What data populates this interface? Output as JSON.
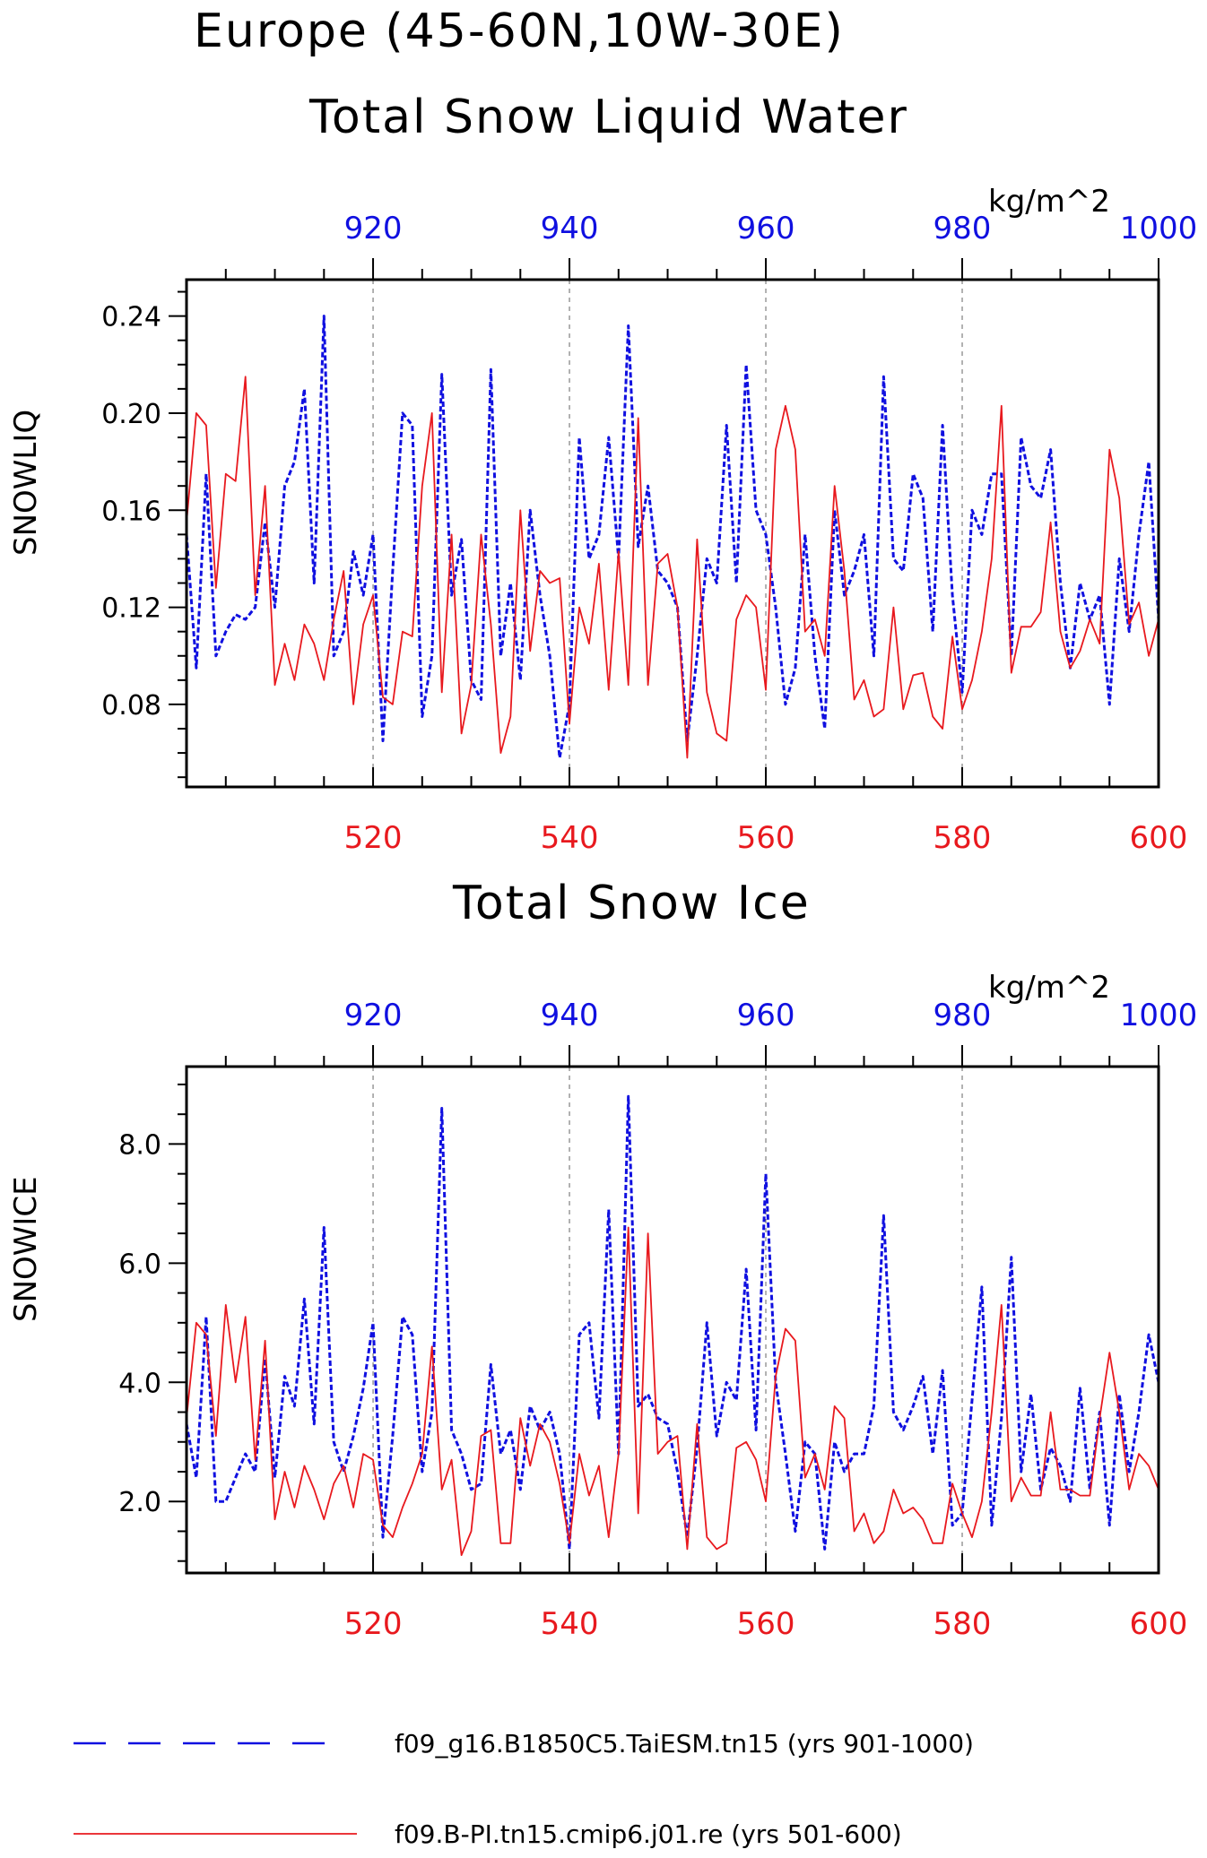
{
  "figure": {
    "title_line1": "Europe (45-60N,10W-30E)",
    "title_line2": "Total Snow Liquid Water"
  },
  "legend": {
    "entries": [
      {
        "label": "f09_g16.B1850C5.TaiESM.tn15 (yrs 901-1000)",
        "color": "#1010e0",
        "style": "dashed"
      },
      {
        "label": "f09.B-PI.tn15.cmip6.j01.re (yrs 501-600)",
        "color": "#e8191e",
        "style": "solid"
      }
    ]
  },
  "chart_data": [
    {
      "type": "line",
      "title": "Total Snow Liquid Water",
      "ylabel": "SNOWLIQ",
      "units": "kg/m^2",
      "ylim": [
        0.046,
        0.255
      ],
      "yticks": [
        "0.08",
        "0.12",
        "0.16",
        "0.20",
        "0.24"
      ],
      "ytick_values": [
        0.08,
        0.12,
        0.16,
        0.2,
        0.24
      ],
      "x_bottom": {
        "range": [
          501,
          600
        ],
        "ticks": [
          "520",
          "540",
          "560",
          "580",
          "600"
        ],
        "tick_values": [
          520,
          540,
          560,
          580,
          600
        ]
      },
      "x_top": {
        "range": [
          901,
          1000
        ],
        "ticks": [
          "920",
          "940",
          "960",
          "980",
          "1000"
        ],
        "tick_values": [
          920,
          940,
          960,
          980,
          1000
        ]
      },
      "grid": "vertical dashed",
      "series": [
        {
          "axis": "top",
          "color": "#1010e0",
          "dash": true,
          "start": 901,
          "values": [
            0.15,
            0.095,
            0.175,
            0.1,
            0.11,
            0.117,
            0.115,
            0.12,
            0.155,
            0.12,
            0.17,
            0.18,
            0.21,
            0.13,
            0.24,
            0.1,
            0.11,
            0.143,
            0.125,
            0.15,
            0.065,
            0.135,
            0.2,
            0.195,
            0.075,
            0.1,
            0.216,
            0.125,
            0.148,
            0.09,
            0.082,
            0.218,
            0.1,
            0.13,
            0.09,
            0.16,
            0.125,
            0.1,
            0.058,
            0.08,
            0.19,
            0.14,
            0.15,
            0.19,
            0.14,
            0.236,
            0.145,
            0.17,
            0.135,
            0.13,
            0.12,
            0.065,
            0.1,
            0.14,
            0.13,
            0.195,
            0.13,
            0.22,
            0.16,
            0.15,
            0.12,
            0.08,
            0.095,
            0.15,
            0.1,
            0.07,
            0.16,
            0.125,
            0.135,
            0.15,
            0.1,
            0.215,
            0.14,
            0.135,
            0.175,
            0.165,
            0.11,
            0.195,
            0.125,
            0.085,
            0.16,
            0.15,
            0.175,
            0.175,
            0.1,
            0.19,
            0.17,
            0.165,
            0.185,
            0.13,
            0.095,
            0.13,
            0.115,
            0.125,
            0.08,
            0.14,
            0.11,
            0.15,
            0.18,
            0.115
          ]
        },
        {
          "axis": "bottom",
          "color": "#e8191e",
          "dash": false,
          "start": 501,
          "values": [
            0.155,
            0.2,
            0.195,
            0.128,
            0.175,
            0.172,
            0.215,
            0.125,
            0.17,
            0.088,
            0.105,
            0.09,
            0.113,
            0.105,
            0.09,
            0.115,
            0.135,
            0.08,
            0.113,
            0.125,
            0.083,
            0.08,
            0.11,
            0.108,
            0.17,
            0.2,
            0.085,
            0.15,
            0.068,
            0.088,
            0.15,
            0.113,
            0.06,
            0.075,
            0.16,
            0.102,
            0.135,
            0.13,
            0.132,
            0.072,
            0.12,
            0.105,
            0.138,
            0.086,
            0.143,
            0.088,
            0.198,
            0.088,
            0.138,
            0.142,
            0.12,
            0.058,
            0.148,
            0.085,
            0.068,
            0.065,
            0.115,
            0.125,
            0.12,
            0.086,
            0.185,
            0.203,
            0.185,
            0.11,
            0.115,
            0.1,
            0.17,
            0.135,
            0.082,
            0.09,
            0.075,
            0.078,
            0.12,
            0.078,
            0.092,
            0.093,
            0.075,
            0.07,
            0.108,
            0.078,
            0.09,
            0.11,
            0.14,
            0.203,
            0.093,
            0.112,
            0.112,
            0.118,
            0.155,
            0.11,
            0.095,
            0.102,
            0.115,
            0.105,
            0.185,
            0.165,
            0.113,
            0.122,
            0.1,
            0.115
          ]
        }
      ]
    },
    {
      "type": "line",
      "title": "Total Snow Ice",
      "ylabel": "SNOWICE",
      "units": "kg/m^2",
      "ylim": [
        0.8,
        9.3
      ],
      "yticks": [
        "2.0",
        "4.0",
        "6.0",
        "8.0"
      ],
      "ytick_values": [
        2.0,
        4.0,
        6.0,
        8.0
      ],
      "x_bottom": {
        "range": [
          501,
          600
        ],
        "ticks": [
          "520",
          "540",
          "560",
          "580",
          "600"
        ],
        "tick_values": [
          520,
          540,
          560,
          580,
          600
        ]
      },
      "x_top": {
        "range": [
          901,
          1000
        ],
        "ticks": [
          "920",
          "940",
          "960",
          "980",
          "1000"
        ],
        "tick_values": [
          920,
          940,
          960,
          980,
          1000
        ]
      },
      "grid": "vertical dashed",
      "series": [
        {
          "axis": "top",
          "color": "#1010e0",
          "dash": true,
          "start": 901,
          "values": [
            3.3,
            2.4,
            5.1,
            2.0,
            2.0,
            2.4,
            2.8,
            2.5,
            4.4,
            2.4,
            4.1,
            3.6,
            5.4,
            3.3,
            6.6,
            3.0,
            2.5,
            3.1,
            3.9,
            5.0,
            1.4,
            3.1,
            5.1,
            4.8,
            2.5,
            3.5,
            8.6,
            3.2,
            2.8,
            2.2,
            2.3,
            4.3,
            2.8,
            3.2,
            2.2,
            3.6,
            3.2,
            3.5,
            2.8,
            1.2,
            4.8,
            5.0,
            3.4,
            6.9,
            2.8,
            8.8,
            3.6,
            3.8,
            3.4,
            3.3,
            2.5,
            1.4,
            2.9,
            5.0,
            3.1,
            4.0,
            3.7,
            5.9,
            3.2,
            7.5,
            4.0,
            2.8,
            1.5,
            3.0,
            2.8,
            1.2,
            3.0,
            2.5,
            2.8,
            2.8,
            3.6,
            6.8,
            3.5,
            3.2,
            3.6,
            4.1,
            2.8,
            4.2,
            1.6,
            1.8,
            3.7,
            5.6,
            1.6,
            3.4,
            6.1,
            2.5,
            3.8,
            2.2,
            2.9,
            2.6,
            2.0,
            3.9,
            2.2,
            3.5,
            1.6,
            3.8,
            2.5,
            3.5,
            4.8,
            4.0
          ]
        },
        {
          "axis": "bottom",
          "color": "#e8191e",
          "dash": false,
          "start": 501,
          "values": [
            3.4,
            5.0,
            4.8,
            3.1,
            5.3,
            4.0,
            5.1,
            2.7,
            4.7,
            1.7,
            2.5,
            1.9,
            2.6,
            2.2,
            1.7,
            2.3,
            2.6,
            1.9,
            2.8,
            2.7,
            1.6,
            1.4,
            1.9,
            2.3,
            2.8,
            4.6,
            2.2,
            2.7,
            1.1,
            1.5,
            3.1,
            3.2,
            1.3,
            1.3,
            3.4,
            2.6,
            3.3,
            3.0,
            2.3,
            1.3,
            2.8,
            2.1,
            2.6,
            1.4,
            2.8,
            6.6,
            1.8,
            6.5,
            2.8,
            3.0,
            3.1,
            1.2,
            3.3,
            1.4,
            1.2,
            1.3,
            2.9,
            3.0,
            2.7,
            2.0,
            4.1,
            4.9,
            4.7,
            2.4,
            2.8,
            2.2,
            3.6,
            3.4,
            1.5,
            1.8,
            1.3,
            1.5,
            2.2,
            1.8,
            1.9,
            1.7,
            1.3,
            1.3,
            2.3,
            1.8,
            1.4,
            2.0,
            3.5,
            5.3,
            2.0,
            2.4,
            2.1,
            2.1,
            3.5,
            2.2,
            2.2,
            2.1,
            2.1,
            3.4,
            4.5,
            3.5,
            2.2,
            2.8,
            2.6,
            2.2
          ]
        }
      ]
    }
  ]
}
